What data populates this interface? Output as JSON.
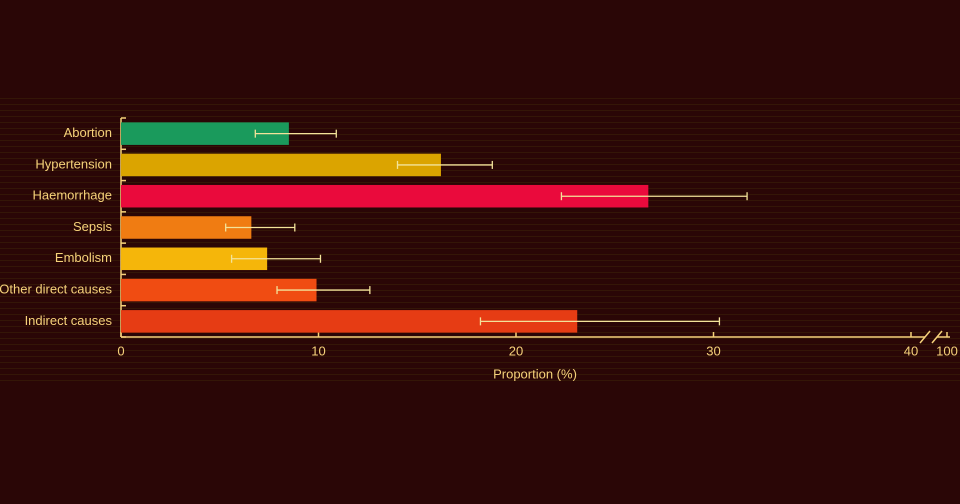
{
  "chart_data": {
    "type": "bar",
    "orientation": "horizontal",
    "categories": [
      "Abortion",
      "Hypertension",
      "Haemorrhage",
      "Sepsis",
      "Embolism",
      "Other direct causes",
      "Indirect causes"
    ],
    "values": [
      8.5,
      16.2,
      26.7,
      6.6,
      7.4,
      9.9,
      23.1
    ],
    "error_low": [
      6.8,
      14.0,
      22.3,
      5.3,
      5.6,
      7.9,
      18.2
    ],
    "error_high": [
      10.9,
      18.8,
      31.7,
      8.8,
      10.1,
      12.6,
      30.3
    ],
    "colors": [
      "#1a9a5c",
      "#dba400",
      "#ea0a3c",
      "#f07c12",
      "#f5b60a",
      "#f04c12",
      "#e63c14"
    ],
    "xlabel": "Proportion (%)",
    "xlim": [
      0,
      100
    ],
    "xticks": [
      0,
      10,
      20,
      30,
      40,
      100
    ],
    "axis_break": true,
    "grid": false
  }
}
